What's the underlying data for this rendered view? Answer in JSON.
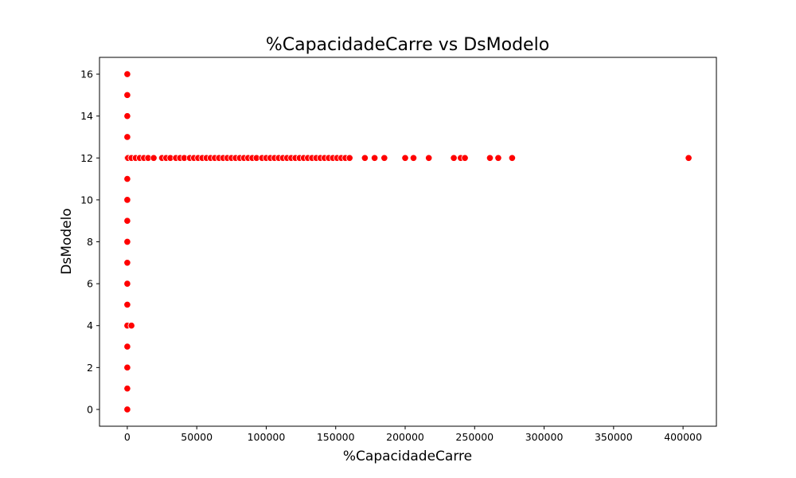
{
  "chart_data": {
    "type": "scatter",
    "title": "%CapacidadeCarre vs DsModelo",
    "xlabel": "%CapacidadeCarre",
    "ylabel": "DsModelo",
    "xlim": [
      -20000,
      424000
    ],
    "ylim": [
      -0.8,
      16.8
    ],
    "xticks": [
      0,
      50000,
      100000,
      150000,
      200000,
      250000,
      300000,
      350000,
      400000
    ],
    "yticks": [
      0,
      2,
      4,
      6,
      8,
      10,
      12,
      14,
      16
    ],
    "grid": false,
    "legend": "none",
    "marker_color": "#ff0000",
    "marker_edge_color": "#ffffff",
    "series": [
      {
        "x": [
          0,
          0,
          0,
          0,
          0,
          0,
          0,
          0,
          0,
          0,
          0,
          0,
          0,
          0,
          0,
          0,
          0,
          3000,
          500,
          3000,
          6000,
          9000,
          12000,
          15000,
          19000,
          25000,
          28000,
          31000,
          35000,
          38000,
          41000,
          45000,
          48000,
          51000,
          54000,
          57000,
          60000,
          63000,
          66000,
          69000,
          72000,
          75000,
          78000,
          81000,
          84000,
          87000,
          90000,
          93000,
          97000,
          100000,
          103000,
          106000,
          109000,
          112000,
          115000,
          118000,
          121000,
          124000,
          127000,
          130000,
          133000,
          136000,
          139000,
          142000,
          145000,
          148000,
          151000,
          154000,
          157000,
          160000,
          171000,
          178000,
          185000,
          200000,
          206000,
          217000,
          235000,
          240000,
          243000,
          261000,
          267000,
          277000,
          404000
        ],
        "y": [
          0,
          1,
          2,
          3,
          4,
          5,
          6,
          7,
          8,
          9,
          10,
          11,
          12,
          13,
          14,
          15,
          16,
          4,
          12,
          12,
          12,
          12,
          12,
          12,
          12,
          12,
          12,
          12,
          12,
          12,
          12,
          12,
          12,
          12,
          12,
          12,
          12,
          12,
          12,
          12,
          12,
          12,
          12,
          12,
          12,
          12,
          12,
          12,
          12,
          12,
          12,
          12,
          12,
          12,
          12,
          12,
          12,
          12,
          12,
          12,
          12,
          12,
          12,
          12,
          12,
          12,
          12,
          12,
          12,
          12,
          12,
          12,
          12,
          12,
          12,
          12,
          12,
          12,
          12,
          12,
          12,
          12,
          12
        ]
      }
    ]
  }
}
